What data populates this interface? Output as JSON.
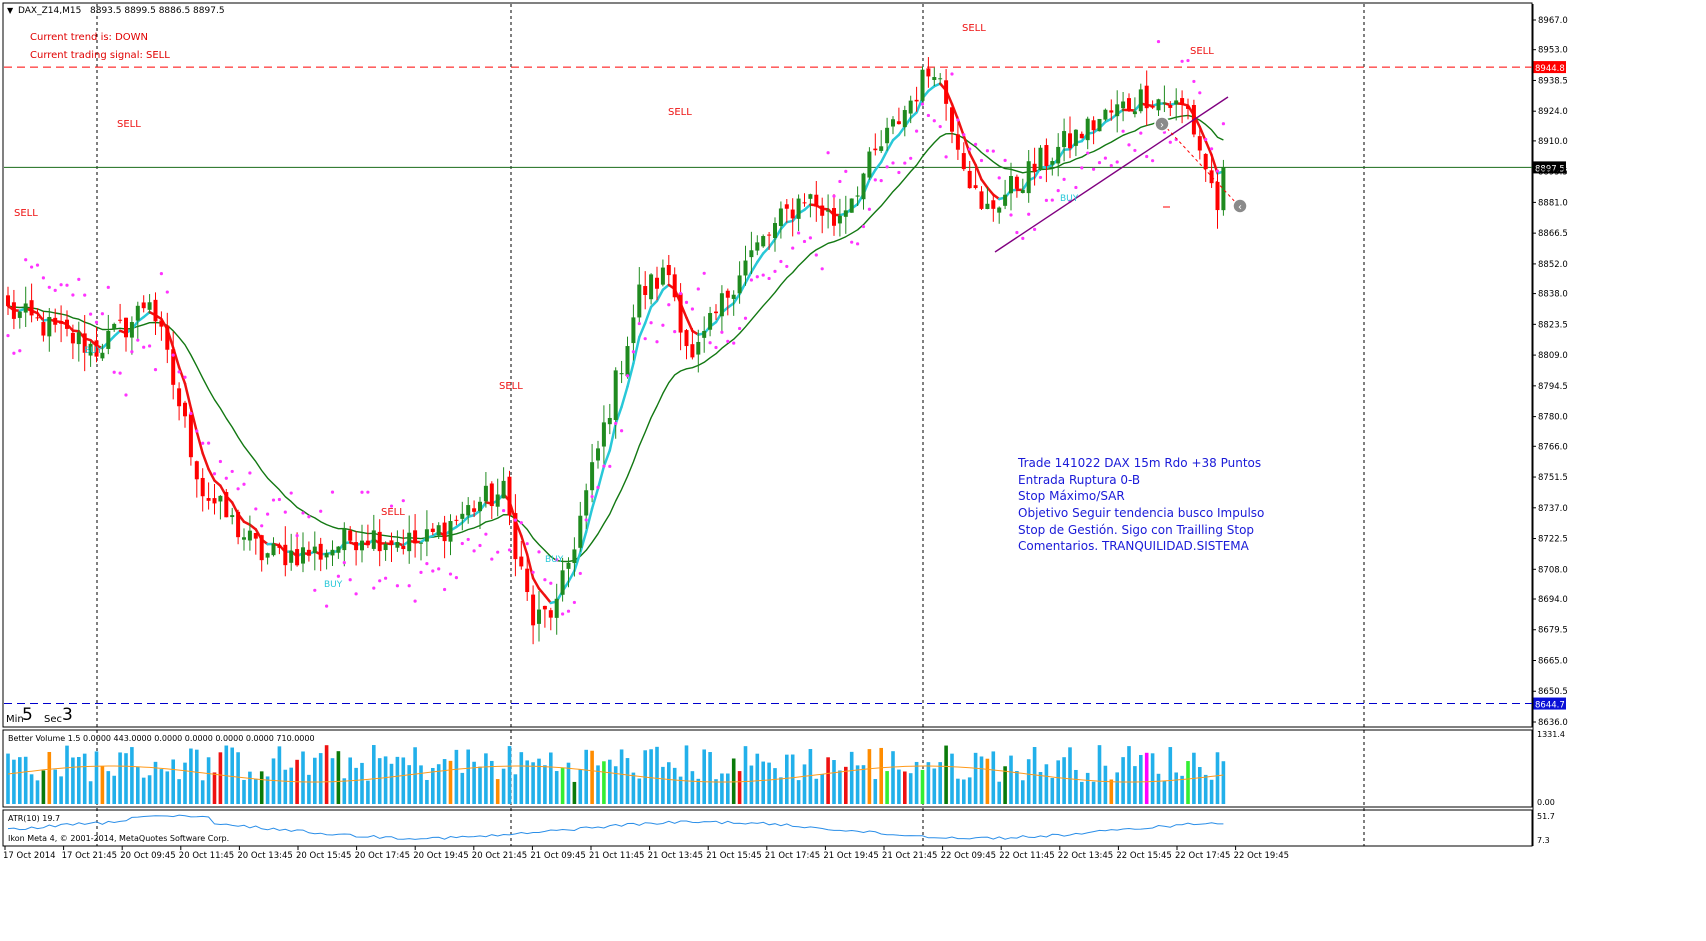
{
  "header": {
    "title": "DAX_Z14,M15",
    "ohlc": "8893.5 8899.5 8886.5 8897.5",
    "trend_text": "Current trend is: DOWN",
    "signal_text": "Current trading signal: SELL"
  },
  "timer": {
    "min_label": "Min",
    "min_value": "5",
    "sec_label": "Sec",
    "sec_value": "3"
  },
  "note_lines": [
    "Trade 141022 DAX 15m Rdo +38 Puntos",
    "Entrada Ruptura 0-B",
    "Stop Máximo/SAR",
    "Objetivo Seguir tendencia busco Impulso",
    "Stop de Gestión. Sigo con Trailling Stop",
    "Comentarios. TRANQUILIDAD.SISTEMA"
  ],
  "signal_word": "SELL",
  "buy_word": "BUY",
  "subwindows": {
    "volume_label": "Better Volume 1.5 0.0000 443.0000 0.0000 0.0000 0.0000 0.0000 710.0000",
    "volume_max": "1331.4",
    "volume_min": "0.00",
    "atr_label": "ATR(10) 19.7",
    "atr_max": "51.7",
    "atr_min": "7.3",
    "copyright": "Ikon Meta 4, © 2001-2014, MetaQuotes Software Corp."
  },
  "colors": {
    "bull": "#1f8a1f",
    "bear": "#ff0000",
    "fast_ma": "#28c8d8",
    "red_ma": "#ee1111",
    "green_ma": "#127812",
    "blue_ma": "#0a10d8",
    "sar": "#ff33ff",
    "signal": "#ee1111",
    "resistance": "#ff0000",
    "support": "#0000cc",
    "trendline": "#800080"
  },
  "chart_data": {
    "type": "candlestick",
    "symbol": "DAX_Z14",
    "timeframe": "M15",
    "ylim": [
      8630,
      8975
    ],
    "y_ticks": [
      "8967.0",
      "8953.0",
      "8938.5",
      "8924.0",
      "8910.0",
      "8895.5",
      "8881.0",
      "8866.5",
      "8852.0",
      "8838.0",
      "8823.5",
      "8809.0",
      "8794.5",
      "8780.0",
      "8766.0",
      "8751.5",
      "8737.0",
      "8722.5",
      "8708.0",
      "8694.0",
      "8679.5",
      "8665.0",
      "8650.5",
      "8636.0"
    ],
    "x_ticks": [
      "17 Oct 2014",
      "17 Oct 21:45",
      "20 Oct 09:45",
      "20 Oct 11:45",
      "20 Oct 13:45",
      "20 Oct 15:45",
      "20 Oct 17:45",
      "20 Oct 19:45",
      "20 Oct 21:45",
      "21 Oct 09:45",
      "21 Oct 11:45",
      "21 Oct 13:45",
      "21 Oct 15:45",
      "21 Oct 17:45",
      "21 Oct 19:45",
      "21 Oct 21:45",
      "22 Oct 09:45",
      "22 Oct 11:45",
      "22 Oct 13:45",
      "22 Oct 15:45",
      "22 Oct 17:45",
      "22 Oct 19:45"
    ],
    "levels": [
      {
        "label": "8944.8",
        "value": 8944.8
      },
      {
        "label": "8897.5",
        "value": 8897.5
      },
      {
        "label": "8644.7",
        "value": 8644.7
      }
    ],
    "anchors": [
      {
        "x": 0,
        "y": 8830
      },
      {
        "x": 15,
        "y": 8812
      },
      {
        "x": 21,
        "y": 8825
      },
      {
        "x": 24,
        "y": 8837
      },
      {
        "x": 33,
        "y": 8745
      },
      {
        "x": 43,
        "y": 8715
      },
      {
        "x": 53,
        "y": 8716
      },
      {
        "x": 60,
        "y": 8725
      },
      {
        "x": 70,
        "y": 8720
      },
      {
        "x": 80,
        "y": 8740
      },
      {
        "x": 84,
        "y": 8744
      },
      {
        "x": 89,
        "y": 8683
      },
      {
        "x": 93,
        "y": 8690
      },
      {
        "x": 107,
        "y": 8838
      },
      {
        "x": 112,
        "y": 8848
      },
      {
        "x": 116,
        "y": 8805
      },
      {
        "x": 124,
        "y": 8850
      },
      {
        "x": 135,
        "y": 8885
      },
      {
        "x": 140,
        "y": 8872
      },
      {
        "x": 150,
        "y": 8916
      },
      {
        "x": 157,
        "y": 8947
      },
      {
        "x": 165,
        "y": 8875
      },
      {
        "x": 175,
        "y": 8900
      },
      {
        "x": 185,
        "y": 8920
      },
      {
        "x": 193,
        "y": 8932
      },
      {
        "x": 200,
        "y": 8924
      },
      {
        "x": 205,
        "y": 8880
      },
      {
        "x": 206,
        "y": 8897.5
      }
    ],
    "wick_range": [
      8639,
      8960
    ]
  }
}
